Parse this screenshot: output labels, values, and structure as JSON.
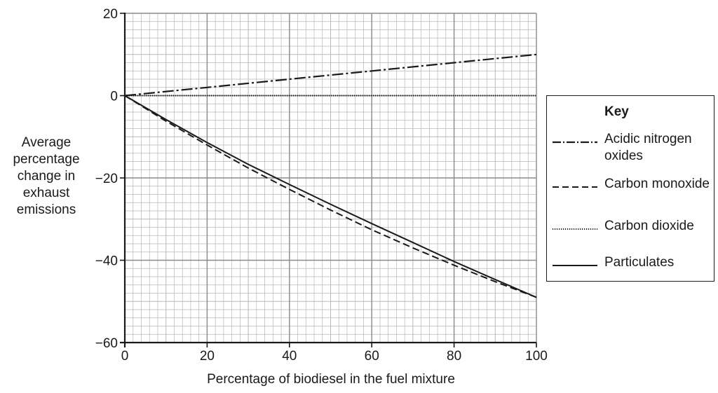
{
  "chart_data": {
    "type": "line",
    "xlabel": "Percentage of biodiesel in the fuel mixture",
    "ylabel": "Average percentage change in exhaust emissions",
    "xlim": [
      0,
      100
    ],
    "ylim": [
      -60,
      20
    ],
    "x_ticks": [
      "0",
      "20",
      "40",
      "60",
      "80",
      "100"
    ],
    "y_ticks": [
      "20",
      "0",
      "−20",
      "−40",
      "−60"
    ],
    "grid": true,
    "legend_title": "Key",
    "legend_position": "right",
    "series": [
      {
        "name": "Acidic nitrogen oxides",
        "style": "dash-dot",
        "x": [
          0,
          20,
          40,
          60,
          80,
          100
        ],
        "y": [
          0,
          2,
          4,
          6,
          8,
          10
        ]
      },
      {
        "name": "Carbon monoxide",
        "style": "dashed",
        "x": [
          0,
          10,
          20,
          30,
          40,
          50,
          60,
          70,
          80,
          90,
          100
        ],
        "y": [
          0,
          -6.2,
          -12.0,
          -17.6,
          -22.8,
          -27.8,
          -32.6,
          -37.0,
          -41.2,
          -45.2,
          -49.0
        ]
      },
      {
        "name": "Carbon dioxide",
        "style": "dotted",
        "x": [
          0,
          100
        ],
        "y": [
          0,
          0
        ]
      },
      {
        "name": "Particulates",
        "style": "solid",
        "x": [
          0,
          10,
          20,
          30,
          40,
          50,
          60,
          70,
          80,
          90,
          100
        ],
        "y": [
          0,
          -5.8,
          -11.4,
          -16.7,
          -21.6,
          -26.4,
          -31.1,
          -35.7,
          -40.3,
          -44.7,
          -49.0
        ]
      }
    ]
  }
}
